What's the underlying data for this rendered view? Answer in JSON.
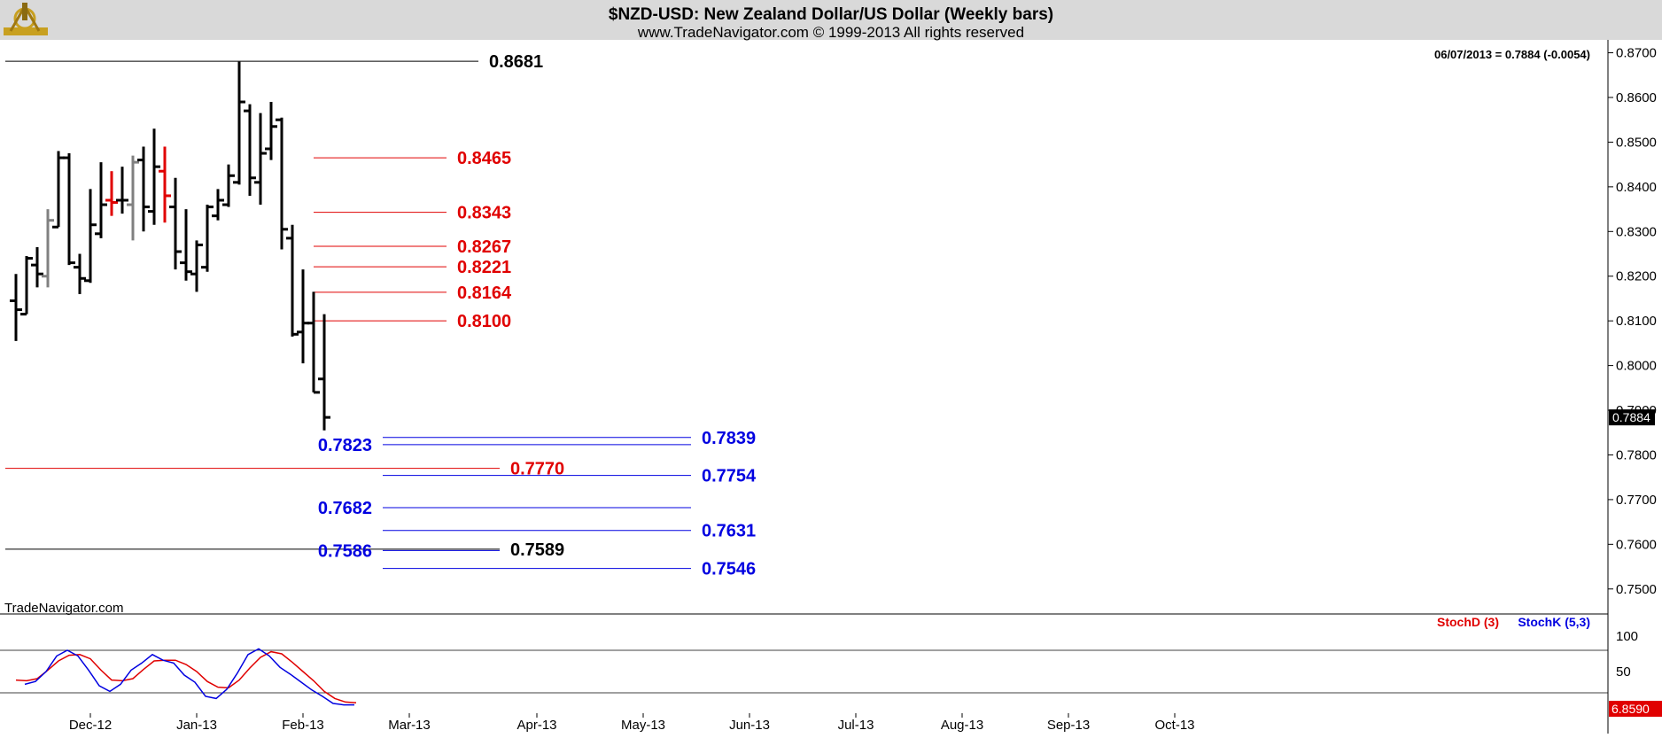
{
  "header": {
    "title": "$NZD-USD:  New Zealand Dollar/US Dollar  (Weekly bars)",
    "copyright": "www.TradeNavigator.com © 1999-2013 All rights reserved",
    "last_quote": "06/07/2013 = 0.7884 (-0.0054)",
    "watermark": "TradeNavigator.com"
  },
  "colors": {
    "header_bg": "#d9d9d9",
    "bar_up_down": "#000000",
    "bar_gray": "#808080",
    "bar_red": "#e00000",
    "red_level": "#e00000",
    "blue_level": "#0000e0",
    "stoch_d": "#e00000",
    "stoch_k": "#0000e0",
    "grid": "#000000"
  },
  "chart_data": [
    {
      "type": "bar",
      "subtype": "ohlc",
      "title": "$NZD-USD:  New Zealand Dollar/US Dollar  (Weekly bars)",
      "y_axis": {
        "position": "right",
        "ylim": [
          0.745,
          0.8715
        ],
        "ticks": [
          0.87,
          0.86,
          0.85,
          0.84,
          0.83,
          0.82,
          0.81,
          0.8,
          0.79,
          0.78,
          0.77,
          0.76,
          0.75
        ],
        "tick_labels": [
          "0.8700",
          "0.8600",
          "0.8500",
          "0.8400",
          "0.8300",
          "0.8200",
          "0.8100",
          "0.8000",
          "0.7900",
          "0.7800",
          "0.7700",
          "0.7600",
          "0.7500"
        ],
        "current_value": "0.7884"
      },
      "x_axis": {
        "labels": [
          "Dec-12",
          "Jan-13",
          "Feb-13",
          "Mar-13",
          "Apr-13",
          "May-13",
          "Jun-13",
          "Jul-13",
          "Aug-13",
          "Sep-13",
          "Oct-13"
        ],
        "label_index": [
          7,
          17,
          27,
          37,
          49,
          59,
          69,
          79,
          89,
          99,
          109
        ]
      },
      "bars": [
        {
          "o": 0.8145,
          "h": 0.8205,
          "l": 0.8055,
          "c": 0.8125,
          "color": "black"
        },
        {
          "o": 0.8115,
          "h": 0.8245,
          "l": 0.8115,
          "c": 0.824,
          "color": "black"
        },
        {
          "o": 0.8225,
          "h": 0.8265,
          "l": 0.8175,
          "c": 0.8205,
          "color": "black"
        },
        {
          "o": 0.82,
          "h": 0.835,
          "l": 0.8175,
          "c": 0.8325,
          "color": "gray"
        },
        {
          "o": 0.831,
          "h": 0.848,
          "l": 0.831,
          "c": 0.8465,
          "color": "black"
        },
        {
          "o": 0.8465,
          "h": 0.8475,
          "l": 0.8225,
          "c": 0.823,
          "color": "black"
        },
        {
          "o": 0.822,
          "h": 0.825,
          "l": 0.816,
          "c": 0.8195,
          "color": "black"
        },
        {
          "o": 0.819,
          "h": 0.8395,
          "l": 0.8185,
          "c": 0.8315,
          "color": "black"
        },
        {
          "o": 0.8295,
          "h": 0.8455,
          "l": 0.8285,
          "c": 0.836,
          "color": "black"
        },
        {
          "o": 0.837,
          "h": 0.8435,
          "l": 0.8335,
          "c": 0.8365,
          "color": "red"
        },
        {
          "o": 0.837,
          "h": 0.8445,
          "l": 0.834,
          "c": 0.837,
          "color": "black"
        },
        {
          "o": 0.836,
          "h": 0.847,
          "l": 0.828,
          "c": 0.8455,
          "color": "gray"
        },
        {
          "o": 0.846,
          "h": 0.849,
          "l": 0.83,
          "c": 0.8355,
          "color": "black"
        },
        {
          "o": 0.8345,
          "h": 0.853,
          "l": 0.8315,
          "c": 0.8445,
          "color": "black"
        },
        {
          "o": 0.8435,
          "h": 0.849,
          "l": 0.832,
          "c": 0.838,
          "color": "red"
        },
        {
          "o": 0.8355,
          "h": 0.842,
          "l": 0.8215,
          "c": 0.8255,
          "color": "black"
        },
        {
          "o": 0.823,
          "h": 0.835,
          "l": 0.819,
          "c": 0.821,
          "color": "black"
        },
        {
          "o": 0.8205,
          "h": 0.828,
          "l": 0.8165,
          "c": 0.827,
          "color": "black"
        },
        {
          "o": 0.822,
          "h": 0.836,
          "l": 0.821,
          "c": 0.8355,
          "color": "black"
        },
        {
          "o": 0.8335,
          "h": 0.8395,
          "l": 0.8325,
          "c": 0.837,
          "color": "black"
        },
        {
          "o": 0.836,
          "h": 0.845,
          "l": 0.8355,
          "c": 0.8425,
          "color": "black"
        },
        {
          "o": 0.841,
          "h": 0.868,
          "l": 0.8405,
          "c": 0.859,
          "color": "black"
        },
        {
          "o": 0.857,
          "h": 0.8585,
          "l": 0.838,
          "c": 0.842,
          "color": "black"
        },
        {
          "o": 0.841,
          "h": 0.8565,
          "l": 0.836,
          "c": 0.8475,
          "color": "black"
        },
        {
          "o": 0.8485,
          "h": 0.859,
          "l": 0.846,
          "c": 0.8535,
          "color": "black"
        },
        {
          "o": 0.855,
          "h": 0.8555,
          "l": 0.826,
          "c": 0.8305,
          "color": "black"
        },
        {
          "o": 0.8285,
          "h": 0.8315,
          "l": 0.8065,
          "c": 0.807,
          "color": "black"
        },
        {
          "o": 0.8075,
          "h": 0.8215,
          "l": 0.8005,
          "c": 0.8095,
          "color": "black"
        },
        {
          "o": 0.8095,
          "h": 0.8165,
          "l": 0.794,
          "c": 0.794,
          "color": "black"
        },
        {
          "o": 0.797,
          "h": 0.8115,
          "l": 0.7855,
          "c": 0.7884,
          "color": "black"
        }
      ],
      "levels": [
        {
          "value": 0.8681,
          "label": "0.8681",
          "color": "black",
          "x_from": -1,
          "x_to": 43.5,
          "label_pos": "right"
        },
        {
          "value": 0.8465,
          "label": "0.8465",
          "color": "red",
          "x_from": 28,
          "x_to": 40.5,
          "label_pos": "right"
        },
        {
          "value": 0.8343,
          "label": "0.8343",
          "color": "red",
          "x_from": 28,
          "x_to": 40.5,
          "label_pos": "right"
        },
        {
          "value": 0.8267,
          "label": "0.8267",
          "color": "red",
          "x_from": 28,
          "x_to": 40.5,
          "label_pos": "right"
        },
        {
          "value": 0.8221,
          "label": "0.8221",
          "color": "red",
          "x_from": 28,
          "x_to": 40.5,
          "label_pos": "right"
        },
        {
          "value": 0.8164,
          "label": "0.8164",
          "color": "red",
          "x_from": 28,
          "x_to": 40.5,
          "label_pos": "right"
        },
        {
          "value": 0.81,
          "label": "0.8100",
          "color": "red",
          "x_from": 28,
          "x_to": 40.5,
          "label_pos": "right"
        },
        {
          "value": 0.7839,
          "label": "0.7839",
          "color": "blue",
          "x_from": 34.5,
          "x_to": 63.5,
          "label_pos": "right"
        },
        {
          "value": 0.7823,
          "label": "0.7823",
          "color": "blue",
          "x_from": 34.5,
          "x_to": 63.5,
          "label_pos": "left"
        },
        {
          "value": 0.777,
          "label": "0.7770",
          "color": "red",
          "x_from": -1,
          "x_to": 45.5,
          "label_pos": "right"
        },
        {
          "value": 0.7754,
          "label": "0.7754",
          "color": "blue",
          "x_from": 34.5,
          "x_to": 63.5,
          "label_pos": "right"
        },
        {
          "value": 0.7682,
          "label": "0.7682",
          "color": "blue",
          "x_from": 34.5,
          "x_to": 63.5,
          "label_pos": "left"
        },
        {
          "value": 0.7631,
          "label": "0.7631",
          "color": "blue",
          "x_from": 34.5,
          "x_to": 63.5,
          "label_pos": "right"
        },
        {
          "value": 0.7589,
          "label": "0.7589",
          "color": "black",
          "x_from": -1,
          "x_to": 45.5,
          "label_pos": "right"
        },
        {
          "value": 0.7586,
          "label": "0.7586",
          "color": "blue",
          "x_from": 34.5,
          "x_to": 45.5,
          "label_pos": "left"
        },
        {
          "value": 0.7546,
          "label": "0.7546",
          "color": "blue",
          "x_from": 34.5,
          "x_to": 63.5,
          "label_pos": "right"
        }
      ]
    },
    {
      "type": "line",
      "title": "",
      "ylim": [
        0,
        100
      ],
      "tick_labels": [
        "100",
        "50"
      ],
      "reference_lines": [
        80,
        20
      ],
      "bottom_value": "6.8590",
      "series": [
        {
          "name": "StochD (3)",
          "color": "red",
          "values": [
            38,
            37,
            40,
            52,
            65,
            73,
            74,
            68,
            52,
            38,
            37,
            40,
            53,
            65,
            66,
            66,
            60,
            50,
            36,
            28,
            27,
            38,
            55,
            70,
            78,
            75,
            63,
            50,
            37,
            22,
            12,
            7,
            6
          ]
        },
        {
          "name": "StochK (5,3)",
          "color": "blue",
          "values": [
            32,
            36,
            50,
            72,
            80,
            72,
            52,
            30,
            22,
            32,
            52,
            62,
            74,
            66,
            62,
            45,
            35,
            15,
            12,
            25,
            48,
            74,
            82,
            72,
            56,
            46,
            35,
            24,
            15,
            5,
            3,
            3
          ]
        }
      ]
    }
  ]
}
